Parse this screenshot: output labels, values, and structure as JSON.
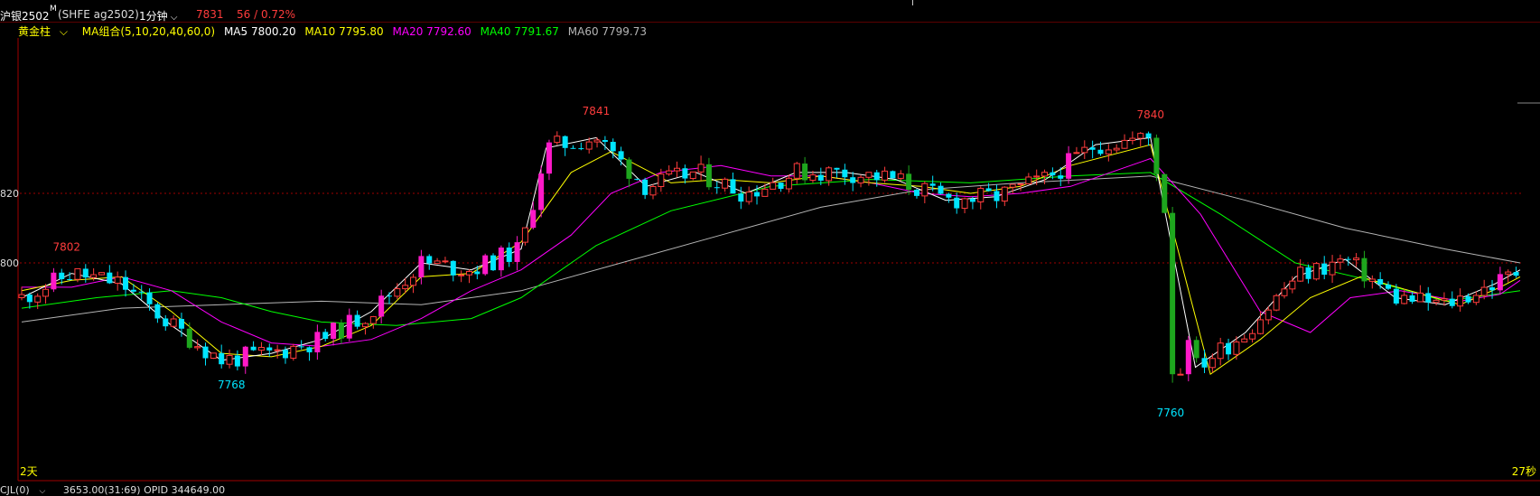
{
  "header": {
    "contract_name": "沪银2502",
    "contract_flag": "M",
    "exchange_code": "(SHFE  ag2502)",
    "period": "1分钟",
    "last_price": "7831",
    "change": "56 / 0.72%"
  },
  "indicator_bar": {
    "style": "黄金柱",
    "ma_combo": "MA组合(5,10,20,40,60,0)",
    "ma5": "MA5 7800.20",
    "ma10": "MA10 7795.80",
    "ma20": "MA20 7792.60",
    "ma40": "MA40 7791.67",
    "ma60": "MA60 7799.73"
  },
  "footer": {
    "indicator": "CJL(0)",
    "values": "3653.00(31:69)  OPID 344649.00"
  },
  "colors": {
    "up": "#ff3c3c",
    "down": "#00e5ff",
    "big_up": "#ff19c8",
    "big_down": "#1ea61e",
    "ma5": "#ffffff",
    "ma10": "#ffff00",
    "ma20": "#ff00ff",
    "ma40": "#00ff00",
    "ma60": "#b4b4b4",
    "grid": "#a00000",
    "high_label": "#ff3c3c",
    "low_label": "#00e5ff"
  },
  "chart_data": {
    "type": "candlestick",
    "y_axis_visible_ticks": [
      "820",
      "800"
    ],
    "gridlines_at": [
      7820,
      7800
    ],
    "ylim": [
      7756,
      7846
    ],
    "high_labels": [
      {
        "value": "7802",
        "bar_index": 9
      },
      {
        "value": "7841",
        "bar_index": 115
      },
      {
        "value": "7840",
        "bar_index": 226
      }
    ],
    "low_labels": [
      {
        "value": "7768",
        "bar_index": 42
      },
      {
        "value": "7760",
        "bar_index": 230
      }
    ],
    "left_corner_label": "2天",
    "right_corner_label": "27秒",
    "series": [
      {
        "name": "MA5",
        "points": [
          [
            0,
            7790
          ],
          [
            10,
            7797
          ],
          [
            20,
            7794
          ],
          [
            30,
            7782
          ],
          [
            40,
            7772
          ],
          [
            50,
            7774
          ],
          [
            60,
            7778
          ],
          [
            70,
            7786
          ],
          [
            80,
            7800
          ],
          [
            90,
            7798
          ],
          [
            100,
            7804
          ],
          [
            105,
            7833
          ],
          [
            115,
            7836
          ],
          [
            125,
            7822
          ],
          [
            135,
            7826
          ],
          [
            145,
            7820
          ],
          [
            155,
            7826
          ],
          [
            165,
            7826
          ],
          [
            175,
            7824
          ],
          [
            185,
            7818
          ],
          [
            195,
            7819
          ],
          [
            205,
            7824
          ],
          [
            215,
            7834
          ],
          [
            226,
            7836
          ],
          [
            235,
            7770
          ],
          [
            245,
            7780
          ],
          [
            255,
            7796
          ],
          [
            265,
            7801
          ],
          [
            275,
            7790
          ],
          [
            285,
            7788
          ],
          [
            295,
            7794
          ],
          [
            300,
            7798
          ]
        ]
      },
      {
        "name": "MA10",
        "points": [
          [
            0,
            7792
          ],
          [
            10,
            7795
          ],
          [
            20,
            7796
          ],
          [
            30,
            7786
          ],
          [
            40,
            7774
          ],
          [
            50,
            7773
          ],
          [
            60,
            7776
          ],
          [
            70,
            7782
          ],
          [
            80,
            7796
          ],
          [
            90,
            7797
          ],
          [
            100,
            7806
          ],
          [
            110,
            7826
          ],
          [
            118,
            7832
          ],
          [
            130,
            7823
          ],
          [
            140,
            7824
          ],
          [
            150,
            7823
          ],
          [
            160,
            7825
          ],
          [
            170,
            7823
          ],
          [
            180,
            7822
          ],
          [
            190,
            7820
          ],
          [
            200,
            7822
          ],
          [
            210,
            7828
          ],
          [
            226,
            7834
          ],
          [
            238,
            7768
          ],
          [
            248,
            7778
          ],
          [
            258,
            7790
          ],
          [
            268,
            7796
          ],
          [
            278,
            7792
          ],
          [
            288,
            7788
          ],
          [
            296,
            7793
          ],
          [
            300,
            7796
          ]
        ]
      },
      {
        "name": "MA20",
        "points": [
          [
            0,
            7793
          ],
          [
            10,
            7793
          ],
          [
            20,
            7796
          ],
          [
            30,
            7792
          ],
          [
            40,
            7783
          ],
          [
            50,
            7777
          ],
          [
            60,
            7776
          ],
          [
            70,
            7778
          ],
          [
            80,
            7784
          ],
          [
            90,
            7792
          ],
          [
            100,
            7798
          ],
          [
            110,
            7808
          ],
          [
            118,
            7820
          ],
          [
            128,
            7826
          ],
          [
            140,
            7828
          ],
          [
            150,
            7825
          ],
          [
            160,
            7825
          ],
          [
            170,
            7823
          ],
          [
            180,
            7820
          ],
          [
            190,
            7819
          ],
          [
            200,
            7820
          ],
          [
            210,
            7822
          ],
          [
            226,
            7830
          ],
          [
            236,
            7814
          ],
          [
            248,
            7786
          ],
          [
            258,
            7780
          ],
          [
            266,
            7790
          ],
          [
            276,
            7792
          ],
          [
            288,
            7789
          ],
          [
            296,
            7791
          ],
          [
            300,
            7795
          ]
        ]
      },
      {
        "name": "MA40",
        "points": [
          [
            0,
            7787
          ],
          [
            15,
            7790
          ],
          [
            30,
            7792
          ],
          [
            40,
            7790
          ],
          [
            50,
            7786
          ],
          [
            60,
            7783
          ],
          [
            75,
            7782
          ],
          [
            90,
            7784
          ],
          [
            100,
            7790
          ],
          [
            115,
            7805
          ],
          [
            130,
            7815
          ],
          [
            150,
            7822
          ],
          [
            170,
            7824
          ],
          [
            190,
            7823
          ],
          [
            210,
            7825
          ],
          [
            226,
            7826
          ],
          [
            240,
            7814
          ],
          [
            255,
            7800
          ],
          [
            270,
            7795
          ],
          [
            285,
            7789
          ],
          [
            300,
            7792
          ]
        ]
      },
      {
        "name": "MA60",
        "points": [
          [
            0,
            7783
          ],
          [
            20,
            7787
          ],
          [
            40,
            7788
          ],
          [
            60,
            7789
          ],
          [
            80,
            7788
          ],
          [
            100,
            7792
          ],
          [
            120,
            7800
          ],
          [
            140,
            7808
          ],
          [
            160,
            7816
          ],
          [
            180,
            7821
          ],
          [
            200,
            7823
          ],
          [
            226,
            7825
          ],
          [
            245,
            7818
          ],
          [
            265,
            7810
          ],
          [
            285,
            7804
          ],
          [
            300,
            7800
          ]
        ]
      }
    ]
  }
}
